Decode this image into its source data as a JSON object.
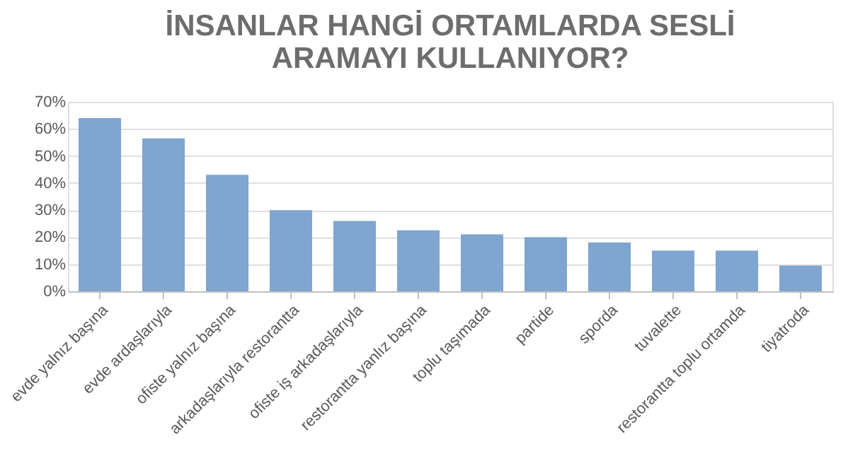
{
  "chart_data": {
    "type": "bar",
    "title": [
      "İNSANLAR HANGİ ORTAMLARDA SESLİ",
      "ARAMAYI KULLANIYOR?"
    ],
    "categories": [
      "evde yalnız başına",
      "evde ardaşlarıyla",
      "ofiste yalnız başına",
      "arkadaşlarıyla restorantta",
      "ofiste iş arkadaşlarıyla",
      "restorantta yanlız başına",
      "toplu taşımada",
      "partide",
      "sporda",
      "tuvalette",
      "restorantta toplu ortamda",
      "tiyatroda"
    ],
    "values": [
      64,
      56.5,
      43,
      30,
      26,
      22.5,
      21,
      20,
      18,
      15,
      15,
      9.5
    ],
    "color": "#7fa5d0",
    "ylim": [
      0,
      70
    ],
    "yticks": [
      {
        "value": 0,
        "label": "0%"
      },
      {
        "value": 10,
        "label": "10%"
      },
      {
        "value": 20,
        "label": "20%"
      },
      {
        "value": 30,
        "label": "30%"
      },
      {
        "value": 40,
        "label": "40%"
      },
      {
        "value": 50,
        "label": "50%"
      },
      {
        "value": 60,
        "label": "60%"
      },
      {
        "value": 70,
        "label": "70%"
      }
    ],
    "grid": "y"
  }
}
